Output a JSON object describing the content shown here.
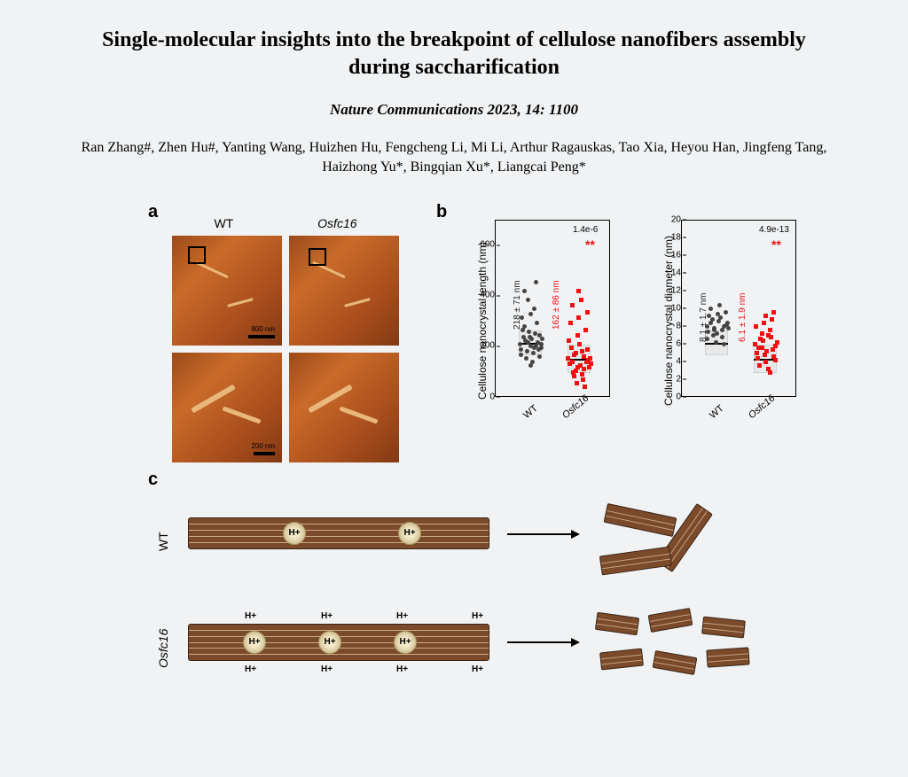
{
  "title": "Single-molecular insights into the breakpoint of cellulose nanofibers assembly during saccharification",
  "citation": "Nature Communications 2023, 14: 1100",
  "authors": "Ran Zhang#, Zhen Hu#, Yanting Wang, Huizhen Hu, Fengcheng Li, Mi Li, Arthur Ragauskas, Tao Xia, Heyou Han, Jingfeng Tang, Haizhong Yu*, Bingqian Xu*, Liangcai Peng*",
  "panel_labels": {
    "a": "a",
    "b": "b",
    "c": "c"
  },
  "panel_a": {
    "col1": "WT",
    "col2": "Osfc16",
    "scalebar_top": "800 nm",
    "scalebar_bottom": "200 nm",
    "image_bg": "#b85a22",
    "fiber_color": "#e8b87a"
  },
  "panel_b": {
    "left": {
      "yaxis": "Cellulose nanocrystal length (nm)",
      "ylim": [
        0,
        700
      ],
      "yticks": [
        0,
        200,
        400,
        600
      ],
      "xlabels": [
        "WT",
        "Osfc16"
      ],
      "stat_wt": "218 ± 71 nm",
      "stat_os": "162 ± 86 nm",
      "pval": "1.4e-6",
      "stars": "**",
      "wt_color": "#444444",
      "os_color": "#ee1111",
      "wt_points": [
        [
          0.15,
          0.3
        ],
        [
          0.28,
          0.34
        ],
        [
          0.42,
          0.31
        ],
        [
          0.55,
          0.33
        ],
        [
          0.68,
          0.29
        ],
        [
          0.82,
          0.35
        ],
        [
          0.2,
          0.27
        ],
        [
          0.34,
          0.32
        ],
        [
          0.48,
          0.34
        ],
        [
          0.62,
          0.28
        ],
        [
          0.76,
          0.31
        ],
        [
          0.88,
          0.3
        ],
        [
          0.25,
          0.38
        ],
        [
          0.4,
          0.26
        ],
        [
          0.52,
          0.29
        ],
        [
          0.66,
          0.36
        ],
        [
          0.78,
          0.27
        ],
        [
          0.9,
          0.33
        ],
        [
          0.18,
          0.24
        ],
        [
          0.32,
          0.4
        ],
        [
          0.46,
          0.37
        ],
        [
          0.6,
          0.25
        ],
        [
          0.72,
          0.42
        ],
        [
          0.86,
          0.28
        ],
        [
          0.22,
          0.45
        ],
        [
          0.36,
          0.22
        ],
        [
          0.5,
          0.47
        ],
        [
          0.64,
          0.5
        ],
        [
          0.8,
          0.23
        ],
        [
          0.44,
          0.55
        ],
        [
          0.3,
          0.6
        ],
        [
          0.58,
          0.2
        ],
        [
          0.7,
          0.65
        ],
        [
          0.5,
          0.18
        ]
      ],
      "os_points": [
        [
          0.15,
          0.22
        ],
        [
          0.28,
          0.2
        ],
        [
          0.42,
          0.25
        ],
        [
          0.55,
          0.18
        ],
        [
          0.68,
          0.23
        ],
        [
          0.82,
          0.21
        ],
        [
          0.2,
          0.19
        ],
        [
          0.34,
          0.24
        ],
        [
          0.48,
          0.17
        ],
        [
          0.62,
          0.26
        ],
        [
          0.76,
          0.2
        ],
        [
          0.88,
          0.22
        ],
        [
          0.25,
          0.28
        ],
        [
          0.4,
          0.15
        ],
        [
          0.52,
          0.3
        ],
        [
          0.66,
          0.16
        ],
        [
          0.78,
          0.27
        ],
        [
          0.9,
          0.19
        ],
        [
          0.18,
          0.32
        ],
        [
          0.32,
          0.14
        ],
        [
          0.46,
          0.35
        ],
        [
          0.6,
          0.13
        ],
        [
          0.72,
          0.38
        ],
        [
          0.86,
          0.17
        ],
        [
          0.22,
          0.42
        ],
        [
          0.36,
          0.12
        ],
        [
          0.5,
          0.45
        ],
        [
          0.64,
          0.1
        ],
        [
          0.8,
          0.48
        ],
        [
          0.44,
          0.08
        ],
        [
          0.3,
          0.52
        ],
        [
          0.58,
          0.55
        ],
        [
          0.7,
          0.06
        ],
        [
          0.5,
          0.6
        ]
      ]
    },
    "right": {
      "yaxis": "Cellulose nanocrystal diameter (nm)",
      "ylim": [
        0,
        20
      ],
      "yticks": [
        0,
        2,
        4,
        6,
        8,
        10,
        12,
        14,
        16,
        18,
        20
      ],
      "xlabels": [
        "WT",
        "Osfc16"
      ],
      "stat_wt": "8.1 ± 1.7 nm",
      "stat_os": "6.1 ± 1.9 nm",
      "pval": "4.9e-13",
      "stars": "**",
      "wt_points": [
        [
          0.18,
          0.4
        ],
        [
          0.3,
          0.42
        ],
        [
          0.44,
          0.39
        ],
        [
          0.56,
          0.43
        ],
        [
          0.7,
          0.38
        ],
        [
          0.84,
          0.41
        ],
        [
          0.22,
          0.37
        ],
        [
          0.36,
          0.44
        ],
        [
          0.5,
          0.36
        ],
        [
          0.62,
          0.45
        ],
        [
          0.76,
          0.4
        ],
        [
          0.9,
          0.39
        ],
        [
          0.26,
          0.46
        ],
        [
          0.4,
          0.35
        ],
        [
          0.54,
          0.47
        ],
        [
          0.68,
          0.34
        ],
        [
          0.8,
          0.48
        ],
        [
          0.2,
          0.33
        ],
        [
          0.32,
          0.5
        ],
        [
          0.48,
          0.31
        ],
        [
          0.6,
          0.52
        ],
        [
          0.74,
          0.3
        ],
        [
          0.86,
          0.42
        ],
        [
          0.42,
          0.38
        ]
      ],
      "os_points": [
        [
          0.18,
          0.3
        ],
        [
          0.3,
          0.28
        ],
        [
          0.44,
          0.32
        ],
        [
          0.56,
          0.26
        ],
        [
          0.7,
          0.34
        ],
        [
          0.84,
          0.29
        ],
        [
          0.22,
          0.25
        ],
        [
          0.36,
          0.33
        ],
        [
          0.5,
          0.24
        ],
        [
          0.62,
          0.35
        ],
        [
          0.76,
          0.27
        ],
        [
          0.9,
          0.31
        ],
        [
          0.26,
          0.22
        ],
        [
          0.4,
          0.36
        ],
        [
          0.54,
          0.2
        ],
        [
          0.68,
          0.38
        ],
        [
          0.8,
          0.23
        ],
        [
          0.2,
          0.4
        ],
        [
          0.32,
          0.18
        ],
        [
          0.48,
          0.42
        ],
        [
          0.6,
          0.16
        ],
        [
          0.74,
          0.44
        ],
        [
          0.86,
          0.21
        ],
        [
          0.42,
          0.28
        ],
        [
          0.52,
          0.46
        ],
        [
          0.66,
          0.14
        ],
        [
          0.78,
          0.48
        ]
      ]
    }
  },
  "panel_c": {
    "row1_label": "WT",
    "row2_label": "Osfc16",
    "hplus": "H+",
    "fiber_color": "#7a4a2a",
    "fiber_border": "#3a2416",
    "amorph_bg": "#f4e9c9"
  }
}
